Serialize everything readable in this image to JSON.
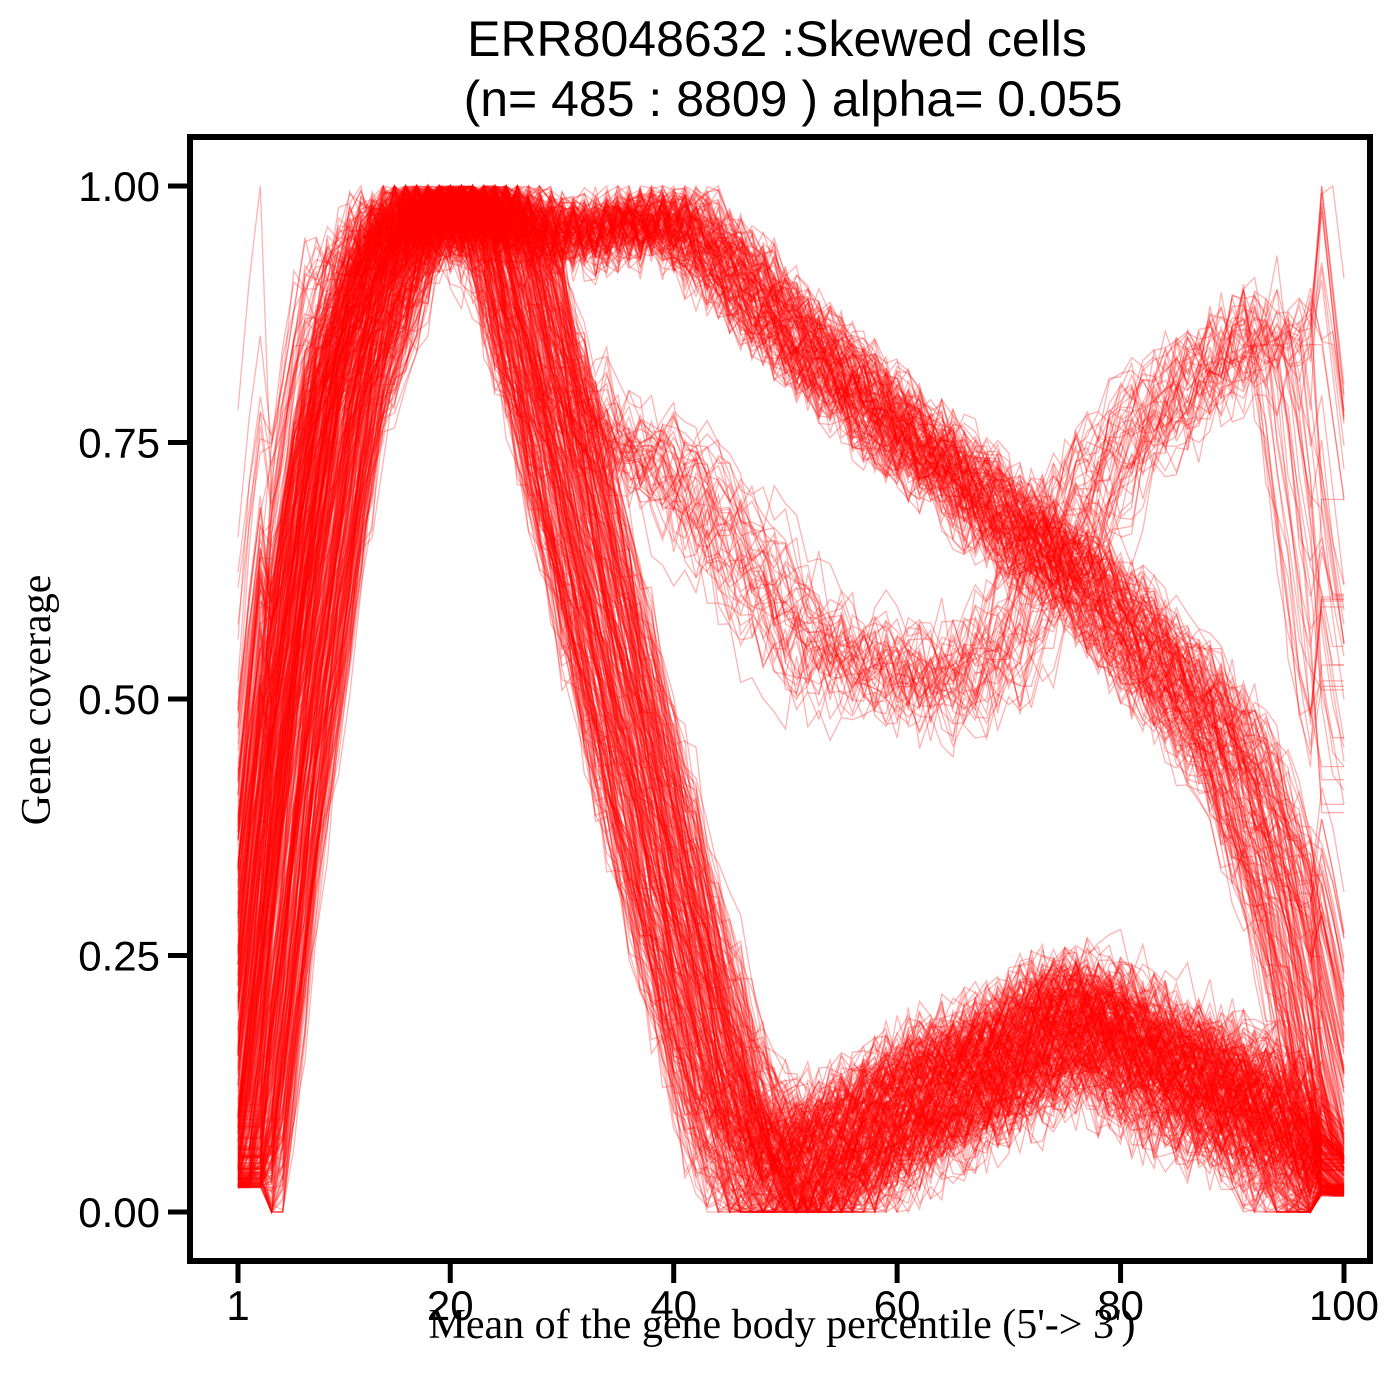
{
  "chart_data": {
    "type": "line",
    "title_line1": "ERR8048632 :Skewed cells",
    "title_line2": "(n= 485 : 8809 ) alpha= 0.055",
    "xlabel": "Mean of the gene body percentile (5'-> 3')",
    "ylabel": "Gene coverage",
    "xlim": [
      1,
      100
    ],
    "ylim": [
      0,
      1
    ],
    "x_ticks": [
      1,
      20,
      40,
      60,
      80,
      100
    ],
    "y_ticks": [
      "0.00",
      "0.25",
      "0.50",
      "0.75",
      "1.00"
    ],
    "line_color": "#ff0000",
    "n_lines": 485,
    "grid": false,
    "archetypes": [
      {
        "name": "early-peak-low-tail",
        "x": [
          1,
          5,
          10,
          15,
          20,
          25,
          30,
          35,
          40,
          45,
          50,
          55,
          60,
          65,
          70,
          75,
          80,
          85,
          90,
          95,
          100
        ],
        "y": [
          0.03,
          0.42,
          0.78,
          0.95,
          1.0,
          0.97,
          0.75,
          0.52,
          0.3,
          0.1,
          0.03,
          0.06,
          0.1,
          0.13,
          0.15,
          0.2,
          0.17,
          0.14,
          0.12,
          0.08,
          0.02
        ]
      },
      {
        "name": "broad-plateau-decline",
        "x": [
          1,
          5,
          10,
          15,
          20,
          25,
          30,
          35,
          40,
          45,
          50,
          55,
          60,
          65,
          70,
          75,
          80,
          85,
          90,
          95,
          100
        ],
        "y": [
          0.05,
          0.45,
          0.85,
          0.97,
          0.99,
          0.98,
          0.96,
          0.97,
          0.98,
          0.93,
          0.87,
          0.82,
          0.77,
          0.73,
          0.68,
          0.64,
          0.58,
          0.52,
          0.45,
          0.3,
          0.05
        ]
      },
      {
        "name": "dip-recovery",
        "x": [
          1,
          5,
          10,
          15,
          20,
          25,
          30,
          35,
          40,
          45,
          50,
          55,
          60,
          65,
          70,
          75,
          80,
          85,
          90,
          95,
          100
        ],
        "y": [
          0.08,
          0.55,
          0.85,
          0.9,
          0.92,
          0.86,
          0.75,
          0.7,
          0.68,
          0.62,
          0.55,
          0.5,
          0.5,
          0.48,
          0.52,
          0.62,
          0.7,
          0.75,
          0.78,
          0.82,
          0.45
        ]
      }
    ]
  }
}
